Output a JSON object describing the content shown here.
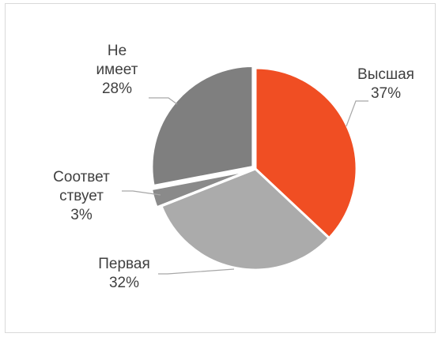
{
  "chart_data": {
    "type": "pie",
    "title": "",
    "slices": [
      {
        "label_lines": [
          "Высшая"
        ],
        "value": 37,
        "value_label": "37%",
        "color": "#f04e23"
      },
      {
        "label_lines": [
          "Первая"
        ],
        "value": 32,
        "value_label": "32%",
        "color": "#ababab"
      },
      {
        "label_lines": [
          "Соответ",
          "ствует"
        ],
        "value": 3,
        "value_label": "3%",
        "color": "#8a8a8a"
      },
      {
        "label_lines": [
          "Не",
          "имеет"
        ],
        "value": 28,
        "value_label": "28%",
        "color": "#7f7f7f"
      }
    ],
    "legend": "none",
    "data_labels": "outside-with-leader-lines"
  }
}
